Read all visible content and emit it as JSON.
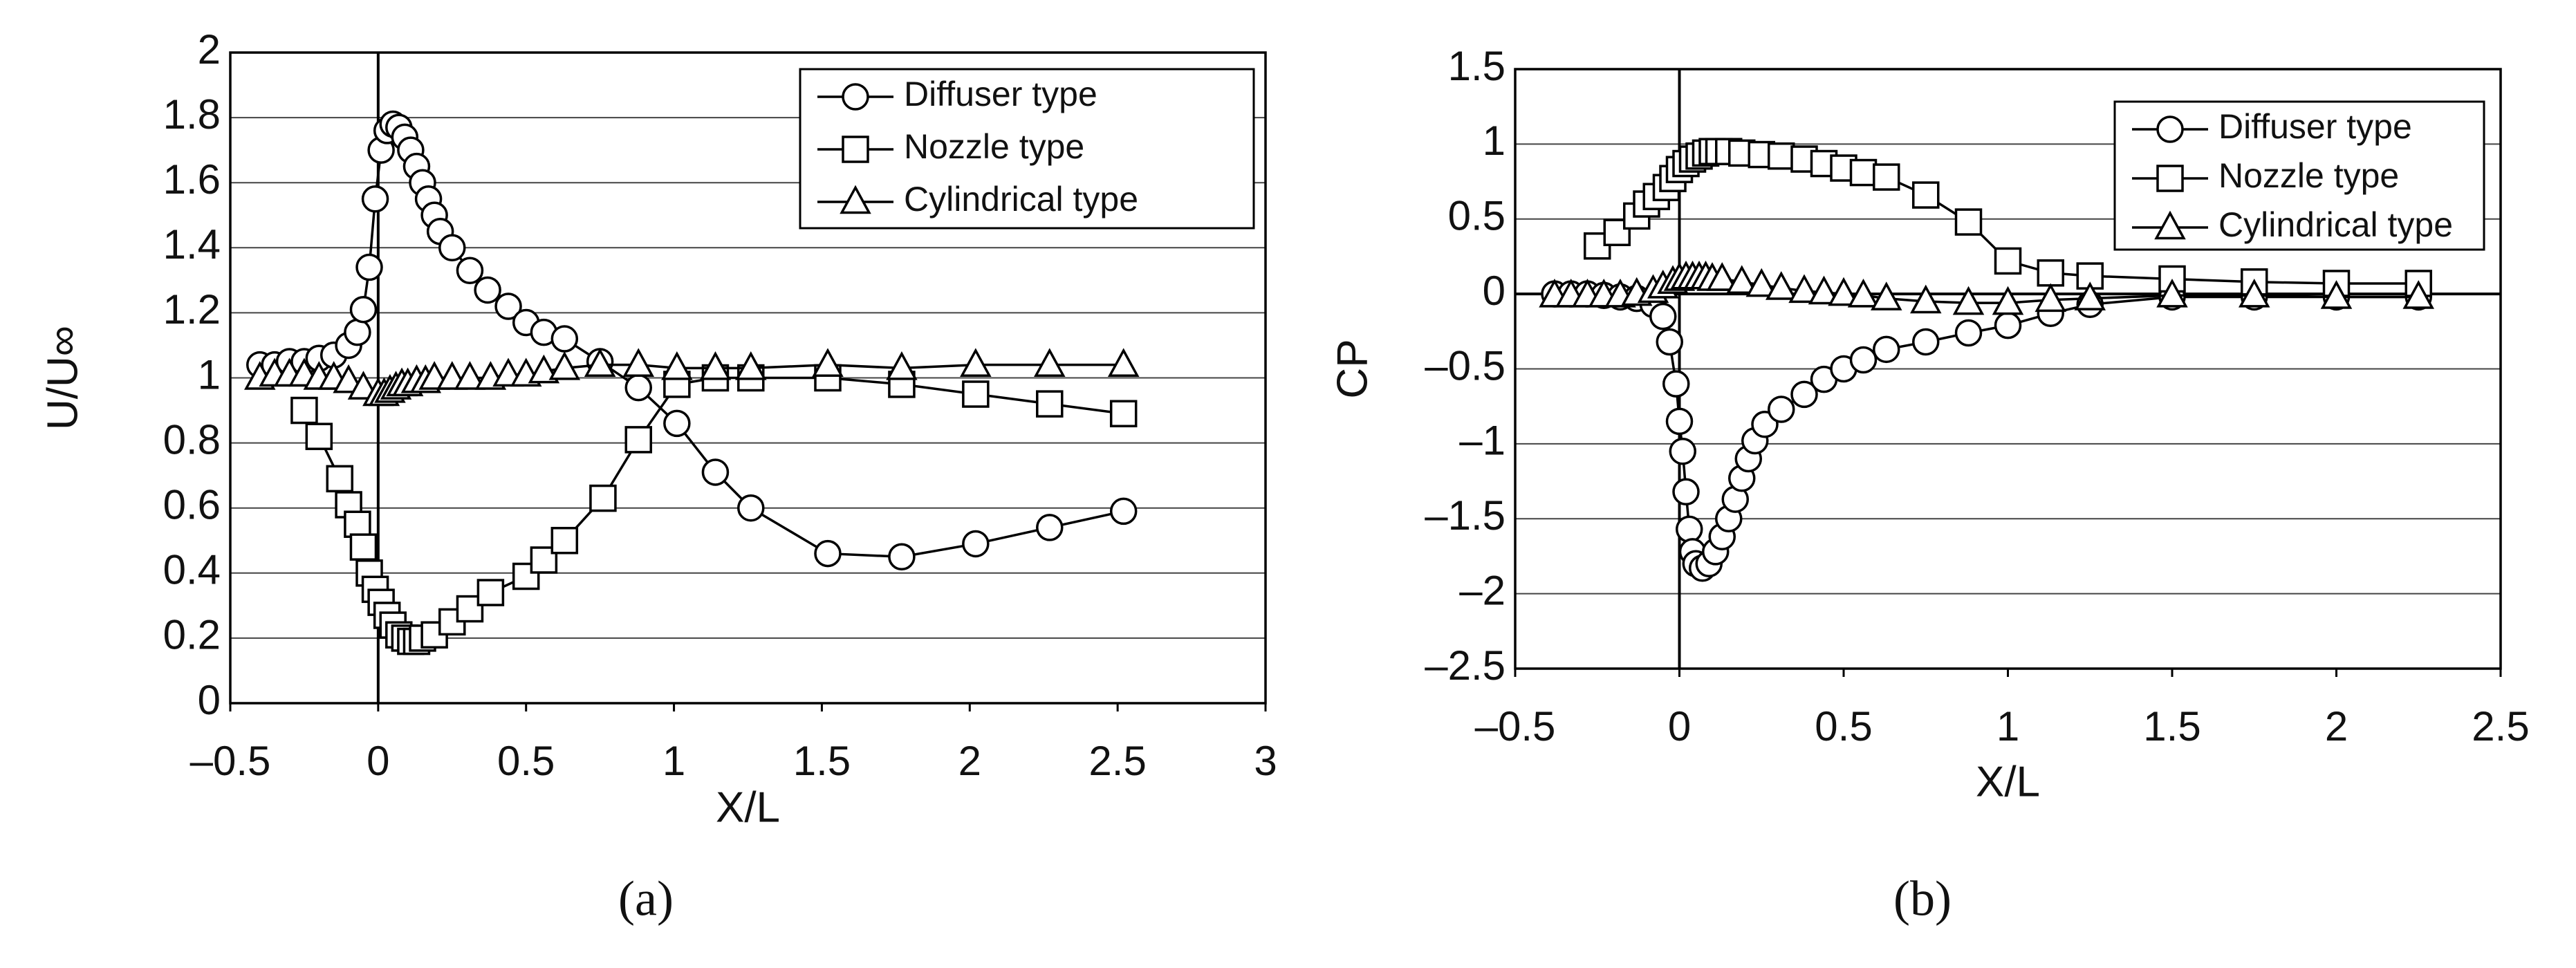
{
  "chart_data": [
    {
      "type": "line",
      "caption": "(a)",
      "xlabel": "X/L",
      "ylabel": "U/U∞",
      "xlim": [
        -0.5,
        3
      ],
      "ylim": [
        0,
        2
      ],
      "xticks": [
        {
          "value": -0.5,
          "label": "–0.5"
        },
        0,
        0.5,
        1,
        1.5,
        2,
        2.5,
        3
      ],
      "yticks": [
        0,
        0.2,
        0.4,
        0.6,
        0.8,
        1,
        1.2,
        1.4,
        1.6,
        1.8,
        2
      ],
      "grid": true,
      "legend": "upper right",
      "series": [
        {
          "name": "Diffuser type",
          "color": "#000000",
          "marker": "circle",
          "x": [
            -0.4,
            -0.35,
            -0.3,
            -0.25,
            -0.2,
            -0.15,
            -0.1,
            -0.07,
            -0.05,
            -0.03,
            -0.01,
            0.01,
            0.03,
            0.05,
            0.07,
            0.09,
            0.11,
            0.13,
            0.15,
            0.17,
            0.19,
            0.21,
            0.25,
            0.31,
            0.37,
            0.44,
            0.5,
            0.56,
            0.63,
            0.75,
            0.88,
            1.01,
            1.14,
            1.26,
            1.52,
            1.77,
            2.02,
            2.27,
            2.52
          ],
          "values": [
            1.04,
            1.04,
            1.05,
            1.05,
            1.06,
            1.07,
            1.1,
            1.14,
            1.21,
            1.34,
            1.55,
            1.7,
            1.76,
            1.78,
            1.77,
            1.74,
            1.7,
            1.65,
            1.6,
            1.55,
            1.5,
            1.45,
            1.4,
            1.33,
            1.27,
            1.22,
            1.17,
            1.14,
            1.12,
            1.05,
            0.97,
            0.86,
            0.71,
            0.6,
            0.46,
            0.45,
            0.49,
            0.54,
            0.59
          ]
        },
        {
          "name": "Nozzle type",
          "color": "#000000",
          "marker": "square",
          "x": [
            -0.25,
            -0.2,
            -0.13,
            -0.1,
            -0.07,
            -0.05,
            -0.03,
            -0.01,
            0.01,
            0.03,
            0.05,
            0.07,
            0.09,
            0.11,
            0.13,
            0.15,
            0.19,
            0.25,
            0.31,
            0.38,
            0.5,
            0.56,
            0.63,
            0.76,
            0.88,
            1.01,
            1.14,
            1.26,
            1.52,
            1.77,
            2.02,
            2.27,
            2.52
          ],
          "values": [
            0.9,
            0.82,
            0.69,
            0.61,
            0.55,
            0.48,
            0.4,
            0.35,
            0.31,
            0.27,
            0.24,
            0.21,
            0.2,
            0.19,
            0.19,
            0.2,
            0.21,
            0.25,
            0.29,
            0.34,
            0.39,
            0.44,
            0.5,
            0.63,
            0.81,
            0.98,
            1.0,
            1.0,
            1.0,
            0.98,
            0.95,
            0.92,
            0.89
          ]
        },
        {
          "name": "Cylindrical type",
          "color": "#000000",
          "marker": "triangle",
          "x": [
            -0.4,
            -0.35,
            -0.3,
            -0.25,
            -0.2,
            -0.15,
            -0.1,
            -0.05,
            0,
            0.02,
            0.04,
            0.06,
            0.08,
            0.1,
            0.13,
            0.16,
            0.19,
            0.25,
            0.31,
            0.38,
            0.44,
            0.5,
            0.56,
            0.63,
            0.75,
            0.88,
            1.01,
            1.14,
            1.26,
            1.52,
            1.77,
            2.02,
            2.27,
            2.52
          ],
          "values": [
            1.0,
            1.01,
            1.01,
            1.01,
            1.0,
            1.0,
            0.99,
            0.97,
            0.95,
            0.95,
            0.96,
            0.97,
            0.98,
            0.98,
            0.99,
            0.99,
            1.0,
            1.0,
            1.0,
            1.0,
            1.01,
            1.01,
            1.02,
            1.03,
            1.04,
            1.04,
            1.03,
            1.03,
            1.03,
            1.04,
            1.03,
            1.04,
            1.04,
            1.04
          ]
        }
      ]
    },
    {
      "type": "line",
      "caption": "(b)",
      "xlabel": "X/L",
      "ylabel": "CP",
      "xlim": [
        -0.5,
        2.5
      ],
      "ylim": [
        -2.5,
        1.5
      ],
      "xticks": [
        {
          "value": -0.5,
          "label": "–0.5"
        },
        0,
        0.5,
        1,
        1.5,
        2,
        2.5
      ],
      "yticks": [
        1.5,
        1,
        0.5,
        0,
        {
          "value": -0.5,
          "label": "–0.5"
        },
        {
          "value": -1,
          "label": "–1"
        },
        {
          "value": -1.5,
          "label": "–1.5"
        },
        {
          "value": -2,
          "label": "–2"
        },
        {
          "value": -2.5,
          "label": "–2.5"
        }
      ],
      "grid": true,
      "legend": "upper right",
      "series": [
        {
          "name": "Diffuser type",
          "color": "#000000",
          "marker": "circle",
          "x": [
            -0.38,
            -0.33,
            -0.28,
            -0.23,
            -0.18,
            -0.13,
            -0.08,
            -0.05,
            -0.03,
            -0.01,
            0.0,
            0.01,
            0.02,
            0.03,
            0.04,
            0.05,
            0.07,
            0.09,
            0.11,
            0.13,
            0.15,
            0.17,
            0.19,
            0.21,
            0.23,
            0.26,
            0.31,
            0.38,
            0.44,
            0.5,
            0.56,
            0.63,
            0.75,
            0.88,
            1.0,
            1.13,
            1.25,
            1.5,
            1.75,
            2.0,
            2.25
          ],
          "values": [
            0.0,
            0.0,
            0.0,
            -0.01,
            -0.02,
            -0.03,
            -0.07,
            -0.15,
            -0.32,
            -0.6,
            -0.85,
            -1.05,
            -1.32,
            -1.57,
            -1.72,
            -1.8,
            -1.83,
            -1.8,
            -1.72,
            -1.62,
            -1.5,
            -1.37,
            -1.23,
            -1.1,
            -0.98,
            -0.87,
            -0.77,
            -0.67,
            -0.57,
            -0.5,
            -0.44,
            -0.37,
            -0.32,
            -0.26,
            -0.21,
            -0.13,
            -0.07,
            -0.02,
            -0.02,
            -0.02,
            -0.02
          ]
        },
        {
          "name": "Nozzle type",
          "color": "#000000",
          "marker": "square",
          "x": [
            -0.25,
            -0.19,
            -0.13,
            -0.1,
            -0.07,
            -0.04,
            -0.02,
            0,
            0.02,
            0.04,
            0.06,
            0.08,
            0.1,
            0.12,
            0.15,
            0.19,
            0.25,
            0.31,
            0.38,
            0.44,
            0.5,
            0.56,
            0.63,
            0.75,
            0.88,
            1.0,
            1.13,
            1.25,
            1.5,
            1.75,
            2.0,
            2.25
          ],
          "values": [
            0.32,
            0.41,
            0.52,
            0.6,
            0.65,
            0.71,
            0.77,
            0.83,
            0.87,
            0.9,
            0.92,
            0.94,
            0.95,
            0.95,
            0.95,
            0.94,
            0.93,
            0.92,
            0.9,
            0.87,
            0.84,
            0.81,
            0.78,
            0.66,
            0.48,
            0.22,
            0.14,
            0.12,
            0.1,
            0.08,
            0.07,
            0.07
          ]
        },
        {
          "name": "Cylindrical type",
          "color": "#000000",
          "marker": "triangle",
          "x": [
            -0.38,
            -0.33,
            -0.28,
            -0.23,
            -0.18,
            -0.13,
            -0.08,
            -0.05,
            -0.02,
            0,
            0.02,
            0.04,
            0.06,
            0.08,
            0.1,
            0.13,
            0.19,
            0.25,
            0.31,
            0.38,
            0.44,
            0.5,
            0.56,
            0.63,
            0.75,
            0.88,
            1.0,
            1.13,
            1.25,
            1.5,
            1.75,
            2.0,
            2.25
          ],
          "values": [
            -0.01,
            -0.01,
            -0.01,
            -0.01,
            -0.01,
            0.0,
            0.02,
            0.05,
            0.08,
            0.1,
            0.11,
            0.11,
            0.11,
            0.11,
            0.1,
            0.1,
            0.08,
            0.06,
            0.04,
            0.02,
            0.01,
            0.0,
            -0.01,
            -0.03,
            -0.05,
            -0.06,
            -0.06,
            -0.04,
            -0.03,
            -0.01,
            -0.01,
            -0.02,
            -0.02
          ]
        }
      ]
    }
  ]
}
